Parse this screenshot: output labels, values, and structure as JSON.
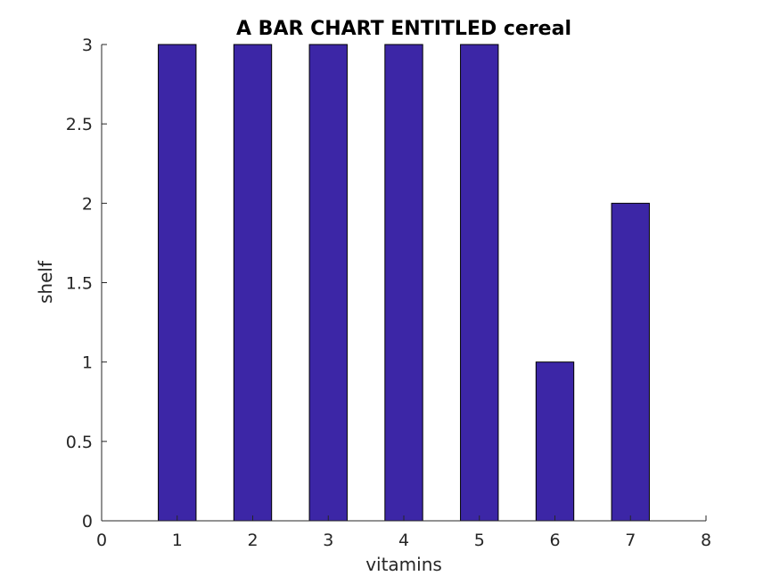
{
  "chart_data": {
    "type": "bar",
    "title": "A BAR CHART ENTITLED cereal",
    "xlabel": "vitamins",
    "ylabel": "shelf",
    "x": [
      1,
      2,
      3,
      4,
      5,
      6,
      7
    ],
    "values": [
      3,
      3,
      3,
      3,
      3,
      1,
      2
    ],
    "xlim": [
      0,
      8
    ],
    "ylim": [
      0,
      3
    ],
    "xticks": [
      "0",
      "1",
      "2",
      "3",
      "4",
      "5",
      "6",
      "7",
      "8"
    ],
    "yticks": [
      "0",
      "0.5",
      "1",
      "1.5",
      "2",
      "2.5",
      "3"
    ],
    "bar_color": "#3c26a6",
    "grid": false
  }
}
